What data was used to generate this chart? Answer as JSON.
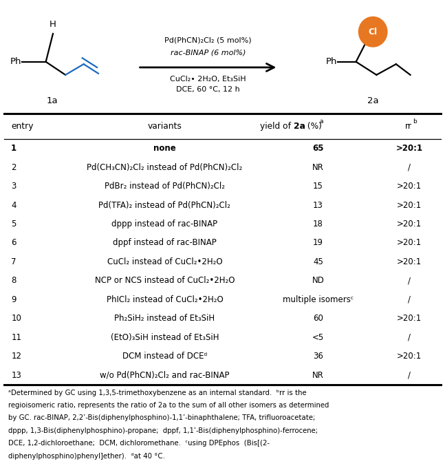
{
  "figsize": [
    6.47,
    6.8
  ],
  "dpi": 100,
  "rows_data": [
    [
      "1",
      "none",
      "65",
      ">20:1",
      true
    ],
    [
      "2",
      "Pd(CH₃CN)₂Cl₂ instead of Pd(PhCN)₂Cl₂",
      "NR",
      "/",
      false
    ],
    [
      "3",
      "PdBr₂ instead of Pd(PhCN)₂Cl₂",
      "15",
      ">20:1",
      false
    ],
    [
      "4",
      "Pd(TFA)₂ instead of Pd(PhCN)₂Cl₂",
      "13",
      ">20:1",
      false
    ],
    [
      "5",
      "dppp instead of rac-BINAP",
      "18",
      ">20:1",
      false
    ],
    [
      "6",
      "dppf instead of rac-BINAP",
      "19",
      ">20:1",
      false
    ],
    [
      "7",
      "CuCl₂ instead of CuCl₂•2H₂O",
      "45",
      ">20:1",
      false
    ],
    [
      "8",
      "NCP or NCS instead of CuCl₂•2H₂O",
      "ND",
      "/",
      false
    ],
    [
      "9",
      "PhICl₂ instead of CuCl₂•2H₂O",
      "multiple isomersᶜ",
      "/",
      false
    ],
    [
      "10",
      "Ph₂SiH₂ instead of Et₃SiH",
      "60",
      ">20:1",
      false
    ],
    [
      "11",
      "(EtO)₃SiH instead of Et₃SiH",
      "<5",
      "/",
      false
    ],
    [
      "12",
      "DCM instead of DCEᵈ",
      "36",
      ">20:1",
      false
    ],
    [
      "13",
      "w/o Pd(PhCN)₂Cl₂ and rac-BINAP",
      "NR",
      "/",
      false
    ]
  ],
  "footnote_lines": [
    "ᵃDetermined by GC using 1,3,5-trimethoxybenzene as an internal standard.  ᵇrr is the",
    "regioisomeric ratio, represents the ratio of 2a to the sum of all other isomers as determined",
    "by GC. rac-BINAP, 2,2’-Bis(diphenylphosphino)-1,1’-binaphthalene; TFA, trifluoroacetate;",
    "dppp, 1,3-Bis(diphenylphosphino)-propane;  dppf, 1,1’-Bis(diphenylphosphino)-ferrocene;",
    "DCE, 1,2-dichloroethane;  DCM, dichloromethane.  ᶜusing DPEphos  (Bis[(2-",
    "diphenylphosphino)phenyl]ether).  ᵈat 40 °C."
  ],
  "cl_circle_color": "#E87722",
  "bond_color_blue": "#1a6abf",
  "bond_color_black": "#000000"
}
